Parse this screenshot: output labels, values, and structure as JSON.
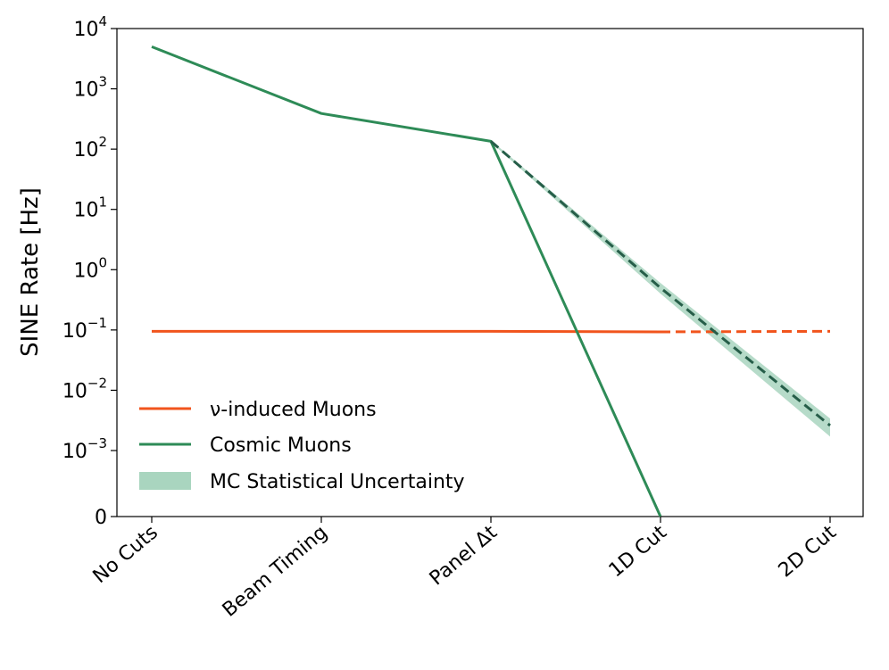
{
  "chart_data": {
    "type": "line",
    "title": "",
    "xlabel": "",
    "ylabel": "SINE Rate [Hz]",
    "categories": [
      "No Cuts",
      "Beam Timing",
      "Panel Δt",
      "1D Cut",
      "2D Cut"
    ],
    "y_axis": {
      "scale": "log with zero floor",
      "tick_values": [
        0,
        0.001,
        0.01,
        0.1,
        1,
        10,
        100,
        1000,
        10000
      ],
      "tick_labels": [
        {
          "base": "0",
          "exp": ""
        },
        {
          "base": "10",
          "exp": "−3"
        },
        {
          "base": "10",
          "exp": "−2"
        },
        {
          "base": "10",
          "exp": "−1"
        },
        {
          "base": "10",
          "exp": "0"
        },
        {
          "base": "10",
          "exp": "1"
        },
        {
          "base": "10",
          "exp": "2"
        },
        {
          "base": "10",
          "exp": "3"
        },
        {
          "base": "10",
          "exp": "4"
        }
      ]
    },
    "grid": false,
    "legend_position": "bottom-left",
    "series": [
      {
        "name": "ν-induced Muons",
        "color": "#f1541d",
        "solid": [
          [
            0,
            0.095
          ],
          [
            1,
            0.095
          ],
          [
            2,
            0.095
          ],
          [
            3,
            0.093
          ]
        ],
        "dashed": [
          [
            3,
            0.093
          ],
          [
            4,
            0.095
          ]
        ]
      },
      {
        "name": "Cosmic Muons",
        "color": "#2e8b57",
        "solid": [
          [
            0,
            5000
          ],
          [
            1,
            390
          ],
          [
            2,
            135
          ],
          [
            3,
            0
          ]
        ],
        "dashed": [
          [
            2,
            135
          ],
          [
            3,
            0.5
          ],
          [
            4,
            0.0026
          ]
        ]
      }
    ],
    "uncertainty_band": {
      "name": "MC Statistical Uncertainty",
      "color": "#a9d5bf",
      "points": [
        {
          "x": 2,
          "lo": 130,
          "hi": 140
        },
        {
          "x": 3,
          "lo": 0.4,
          "hi": 0.6
        },
        {
          "x": 4,
          "lo": 0.0017,
          "hi": 0.0034
        }
      ]
    },
    "legend": [
      {
        "label": "ν-induced Muons",
        "style": "line",
        "color": "#f1541d"
      },
      {
        "label": "Cosmic Muons",
        "style": "line",
        "color": "#2e8b57"
      },
      {
        "label": "MC Statistical Uncertainty",
        "style": "patch",
        "color": "#a9d5bf"
      }
    ]
  }
}
